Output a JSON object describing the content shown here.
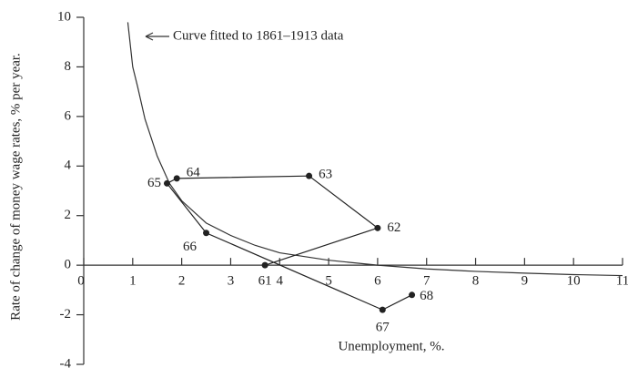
{
  "chart_data": {
    "type": "line",
    "x_label": "Unemployment, %.",
    "y_label": "Rate of change of money wage rates, % per year.",
    "annotation": "Curve fitted to 1861–1913 data",
    "xlim": [
      0,
      11
    ],
    "ylim": [
      -4,
      10
    ],
    "xticks": [
      0,
      1,
      2,
      3,
      4,
      5,
      6,
      7,
      8,
      9,
      10,
      11
    ],
    "yticks": [
      -4,
      -2,
      0,
      2,
      4,
      6,
      8,
      10
    ],
    "series": [
      {
        "name": "Curve fitted to 1861–1913 data",
        "color": "#333333",
        "x": [
          0.9,
          1,
          1.1,
          1.25,
          1.5,
          1.75,
          2,
          2.5,
          3,
          3.5,
          4,
          5,
          6,
          7,
          8,
          9,
          10,
          11
        ],
        "values": [
          9.8,
          8.0,
          7.2,
          5.9,
          4.4,
          3.3,
          2.6,
          1.7,
          1.2,
          0.8,
          0.5,
          0.2,
          0,
          -0.15,
          -0.25,
          -0.32,
          -0.38,
          -0.42
        ]
      },
      {
        "color": "#222222",
        "labels": [
          "61",
          "62",
          "63",
          "64",
          "65",
          "66",
          "67",
          "68"
        ],
        "x": [
          3.7,
          6.0,
          4.6,
          1.9,
          1.7,
          2.5,
          6.1,
          6.7
        ],
        "values": [
          0,
          1.5,
          3.6,
          3.5,
          3.3,
          1.3,
          -1.8,
          -1.2
        ]
      }
    ]
  }
}
